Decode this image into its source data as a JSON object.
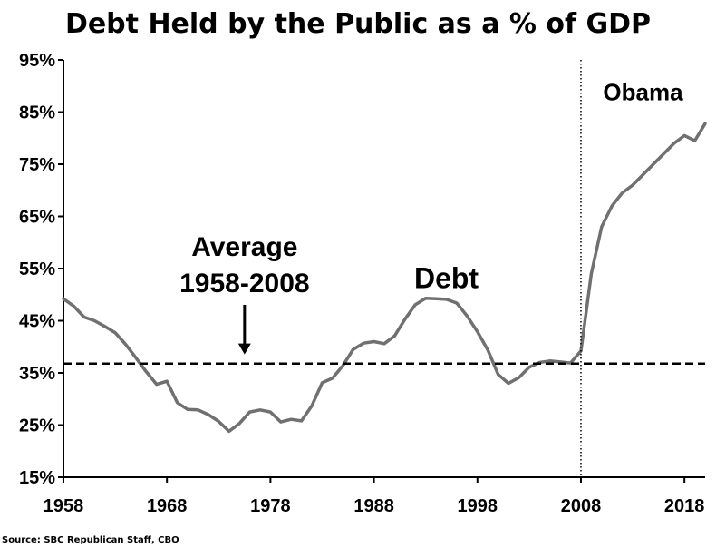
{
  "chart_data": {
    "type": "line",
    "title": "Debt Held by the Public as a % of GDP",
    "xlabel": "",
    "ylabel": "",
    "xlim": [
      1958,
      2020
    ],
    "ylim": [
      15,
      95
    ],
    "x_ticks": [
      1958,
      1968,
      1978,
      1988,
      1998,
      2008,
      2018
    ],
    "y_ticks": [
      15,
      25,
      35,
      45,
      55,
      65,
      75,
      85,
      95
    ],
    "y_tick_labels": [
      "15%",
      "25%",
      "35%",
      "45%",
      "55%",
      "65%",
      "75%",
      "85%",
      "95%"
    ],
    "x_tick_labels": [
      "1958",
      "1968",
      "1978",
      "1988",
      "1998",
      "2008",
      "2018"
    ],
    "grid": false,
    "series": [
      {
        "name": "Debt",
        "color": "#707070",
        "x": [
          1958,
          1959,
          1960,
          1961,
          1962,
          1963,
          1964,
          1965,
          1966,
          1967,
          1968,
          1969,
          1970,
          1971,
          1972,
          1973,
          1974,
          1975,
          1976,
          1977,
          1978,
          1979,
          1980,
          1981,
          1982,
          1983,
          1984,
          1985,
          1986,
          1987,
          1988,
          1989,
          1990,
          1991,
          1992,
          1993,
          1994,
          1995,
          1996,
          1997,
          1998,
          1999,
          2000,
          2001,
          2002,
          2003,
          2004,
          2005,
          2006,
          2007,
          2008,
          2009,
          2010,
          2011,
          2012,
          2013,
          2014,
          2015,
          2016,
          2017,
          2018,
          2019,
          2020
        ],
        "values": [
          49.2,
          47.8,
          45.7,
          45.0,
          43.9,
          42.7,
          40.5,
          37.9,
          35.2,
          32.8,
          33.4,
          29.3,
          28.0,
          27.9,
          27.0,
          25.7,
          23.8,
          25.3,
          27.5,
          27.9,
          27.5,
          25.6,
          26.1,
          25.8,
          28.7,
          33.1,
          34.0,
          36.4,
          39.5,
          40.7,
          41.0,
          40.6,
          42.1,
          45.3,
          48.1,
          49.3,
          49.2,
          49.1,
          48.4,
          45.9,
          42.9,
          39.4,
          34.7,
          33.0,
          34.1,
          36.1,
          37.0,
          37.3,
          37.1,
          36.9,
          39.2,
          54.0,
          63.0,
          67.0,
          69.5,
          71.0,
          73.0,
          75.0,
          77.0,
          79.0,
          80.5,
          79.5,
          82.8
        ]
      },
      {
        "name": "Average 1958-2008",
        "style": "dashed",
        "color": "#000000",
        "x": [
          1958,
          2020
        ],
        "values": [
          36.8,
          36.8
        ]
      }
    ],
    "vertical_lines": [
      {
        "x": 2008,
        "style": "dotted",
        "label": "Obama"
      }
    ],
    "annotations": [
      {
        "text_line1": "Average",
        "text_line2": "1958-2008",
        "arrow_x": 1975.5,
        "arrow_target_y": 36.8
      },
      {
        "text": "Debt",
        "x": 1995,
        "y": 53,
        "color": "#808080"
      },
      {
        "text": "Obama",
        "x": 2014,
        "y": 89
      }
    ],
    "source": "Source: SBC Republican Staff, CBO"
  }
}
